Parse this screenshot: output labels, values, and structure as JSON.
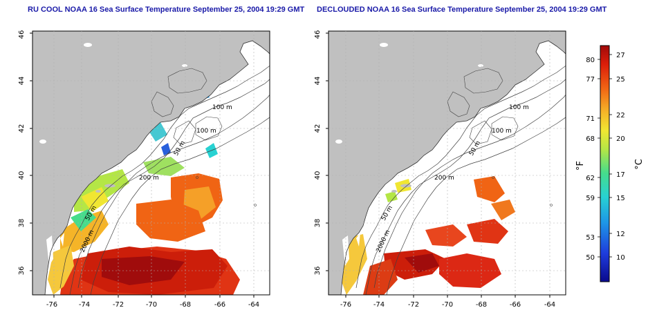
{
  "panels": [
    {
      "title": "RU COOL NOAA 16 Sea Surface Temperature September 25, 2004 19:29 GMT",
      "contour_labels": [
        "100 m",
        "100 m",
        "50 m",
        "200 m",
        "50 m",
        "2000 m"
      ]
    },
    {
      "title": "DECLOUDED NOAA 16 Sea Surface Temperature September 25, 2004 19:29 GMT",
      "contour_labels": [
        "100 m",
        "100 m",
        "50 m",
        "200 m",
        "50 m",
        "2000 m"
      ]
    }
  ],
  "axes": {
    "x_ticks": [
      "-76",
      "-74",
      "-72",
      "-70",
      "-68",
      "-66",
      "-64"
    ],
    "y_ticks": [
      "36",
      "38",
      "40",
      "42",
      "44",
      "46"
    ]
  },
  "colorbar": {
    "fahrenheit_label": "°F",
    "celsius_label": "°C",
    "fahrenheit_ticks": [
      "80",
      "77",
      "71",
      "68",
      "62",
      "59",
      "53",
      "50"
    ],
    "celsius_ticks": [
      "27",
      "25",
      "22",
      "20",
      "17",
      "15",
      "12",
      "10"
    ]
  },
  "colors": {
    "land": "#c0c0c0",
    "title": "#1a1aa8",
    "grid": "#b0b0b0"
  }
}
